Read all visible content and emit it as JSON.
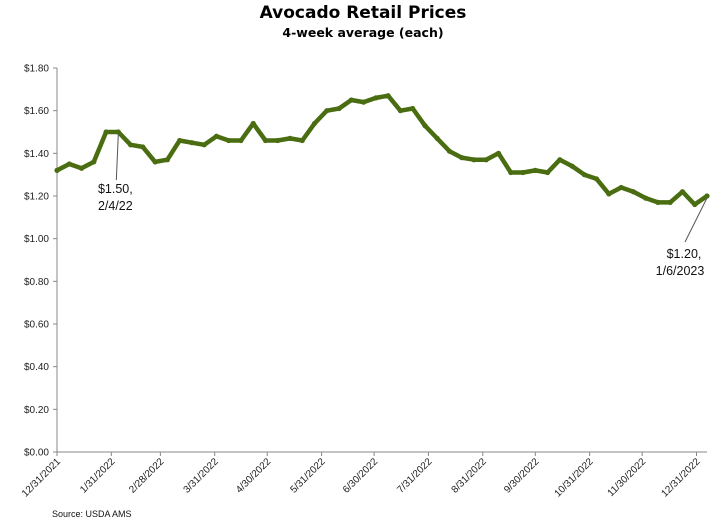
{
  "chart_data": {
    "type": "line",
    "title": "Avocado Retail Prices",
    "subtitle": "4-week average (each)",
    "source": "Source: USDA AMS",
    "ylim": [
      0,
      1.8
    ],
    "yticks": [
      0,
      0.2,
      0.4,
      0.6,
      0.8,
      1.0,
      1.2,
      1.4,
      1.6,
      1.8
    ],
    "ytick_labels": [
      "$0.00",
      "$0.20",
      "$0.40",
      "$0.60",
      "$0.80",
      "$1.00",
      "$1.20",
      "$1.40",
      "$1.60",
      "$1.80"
    ],
    "xlim": [
      "2021-12-31",
      "2023-01-06"
    ],
    "xticks": [
      "2021-12-31",
      "2022-01-31",
      "2022-02-28",
      "2022-03-31",
      "2022-04-30",
      "2022-05-31",
      "2022-06-30",
      "2022-07-31",
      "2022-08-31",
      "2022-09-30",
      "2022-10-31",
      "2022-11-30",
      "2022-12-31"
    ],
    "xtick_labels": [
      "12/31/2021",
      "1/31/2022",
      "2/28/2022",
      "3/31/2022",
      "4/30/2022",
      "5/31/2022",
      "6/30/2022",
      "7/31/2022",
      "8/31/2022",
      "9/30/2022",
      "10/31/2022",
      "11/30/2022",
      "12/31/2022"
    ],
    "grid": false,
    "line_color": "#4a6d12",
    "series": [
      {
        "name": "",
        "x": [
          "2021-12-31",
          "2022-01-07",
          "2022-01-14",
          "2022-01-21",
          "2022-01-28",
          "2022-02-04",
          "2022-02-11",
          "2022-02-18",
          "2022-02-25",
          "2022-03-04",
          "2022-03-11",
          "2022-03-18",
          "2022-03-25",
          "2022-04-01",
          "2022-04-08",
          "2022-04-15",
          "2022-04-22",
          "2022-04-29",
          "2022-05-06",
          "2022-05-13",
          "2022-05-20",
          "2022-05-27",
          "2022-06-03",
          "2022-06-10",
          "2022-06-17",
          "2022-06-24",
          "2022-07-01",
          "2022-07-08",
          "2022-07-15",
          "2022-07-22",
          "2022-07-29",
          "2022-08-05",
          "2022-08-12",
          "2022-08-19",
          "2022-08-26",
          "2022-09-02",
          "2022-09-09",
          "2022-09-16",
          "2022-09-23",
          "2022-09-30",
          "2022-10-07",
          "2022-10-14",
          "2022-10-21",
          "2022-10-28",
          "2022-11-04",
          "2022-11-11",
          "2022-11-18",
          "2022-11-25",
          "2022-12-02",
          "2022-12-09",
          "2022-12-16",
          "2022-12-23",
          "2022-12-30",
          "2023-01-06"
        ],
        "values": [
          1.32,
          1.35,
          1.33,
          1.36,
          1.5,
          1.5,
          1.44,
          1.43,
          1.36,
          1.37,
          1.46,
          1.45,
          1.44,
          1.48,
          1.46,
          1.46,
          1.54,
          1.46,
          1.46,
          1.47,
          1.46,
          1.54,
          1.6,
          1.61,
          1.65,
          1.64,
          1.66,
          1.67,
          1.6,
          1.61,
          1.53,
          1.47,
          1.41,
          1.38,
          1.37,
          1.37,
          1.4,
          1.31,
          1.31,
          1.32,
          1.31,
          1.37,
          1.34,
          1.3,
          1.28,
          1.21,
          1.24,
          1.22,
          1.19,
          1.17,
          1.17,
          1.22,
          1.16,
          1.2
        ]
      }
    ],
    "annotations": [
      {
        "line1": "$1.50,",
        "line2": "2/4/22",
        "x": "2022-02-04",
        "y": 1.5
      },
      {
        "line1": "$1.20,",
        "line2": "1/6/2023",
        "x": "2023-01-06",
        "y": 1.2
      }
    ]
  }
}
